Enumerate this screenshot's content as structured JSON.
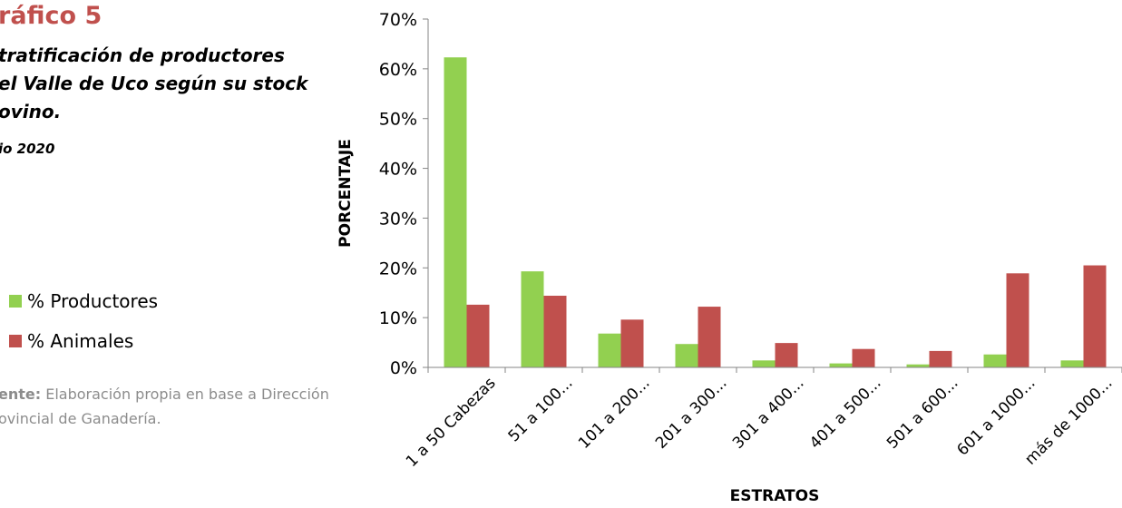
{
  "header": {
    "title": "ráfico 5",
    "subtitle_lines": [
      "tratificación de productores",
      "el Valle de Uco según su stock",
      "ovino."
    ],
    "year": "io 2020"
  },
  "source": {
    "label": "ente:",
    "text_line1": "Elaboración propia en base a Dirección",
    "text_line2": "ovincial de Ganadería."
  },
  "colors": {
    "productores": "#92d050",
    "animales": "#c0504d",
    "title": "#c0504d",
    "source": "#8c8c8c"
  },
  "chart_data": {
    "type": "bar",
    "xlabel": "ESTRATOS",
    "ylabel": "PORCENTAJE",
    "ylim": [
      0,
      70
    ],
    "yticks": [
      "0%",
      "10%",
      "20%",
      "30%",
      "40%",
      "50%",
      "60%",
      "70%"
    ],
    "categories": [
      "1 a 50 Cabezas",
      "51 a 100...",
      "101 a 200...",
      "201 a 300...",
      "301 a 400...",
      "401 a 500...",
      "501 a 600...",
      "601 a 1000...",
      "más de 1000..."
    ],
    "series": [
      {
        "name": "% Productores",
        "values": [
          62.3,
          19.3,
          6.8,
          4.7,
          1.4,
          0.8,
          0.6,
          2.6,
          1.4
        ]
      },
      {
        "name": "% Animales",
        "values": [
          12.6,
          14.4,
          9.6,
          12.2,
          4.9,
          3.7,
          3.3,
          18.9,
          20.5
        ]
      }
    ],
    "legend_position": "left",
    "grid": false
  }
}
